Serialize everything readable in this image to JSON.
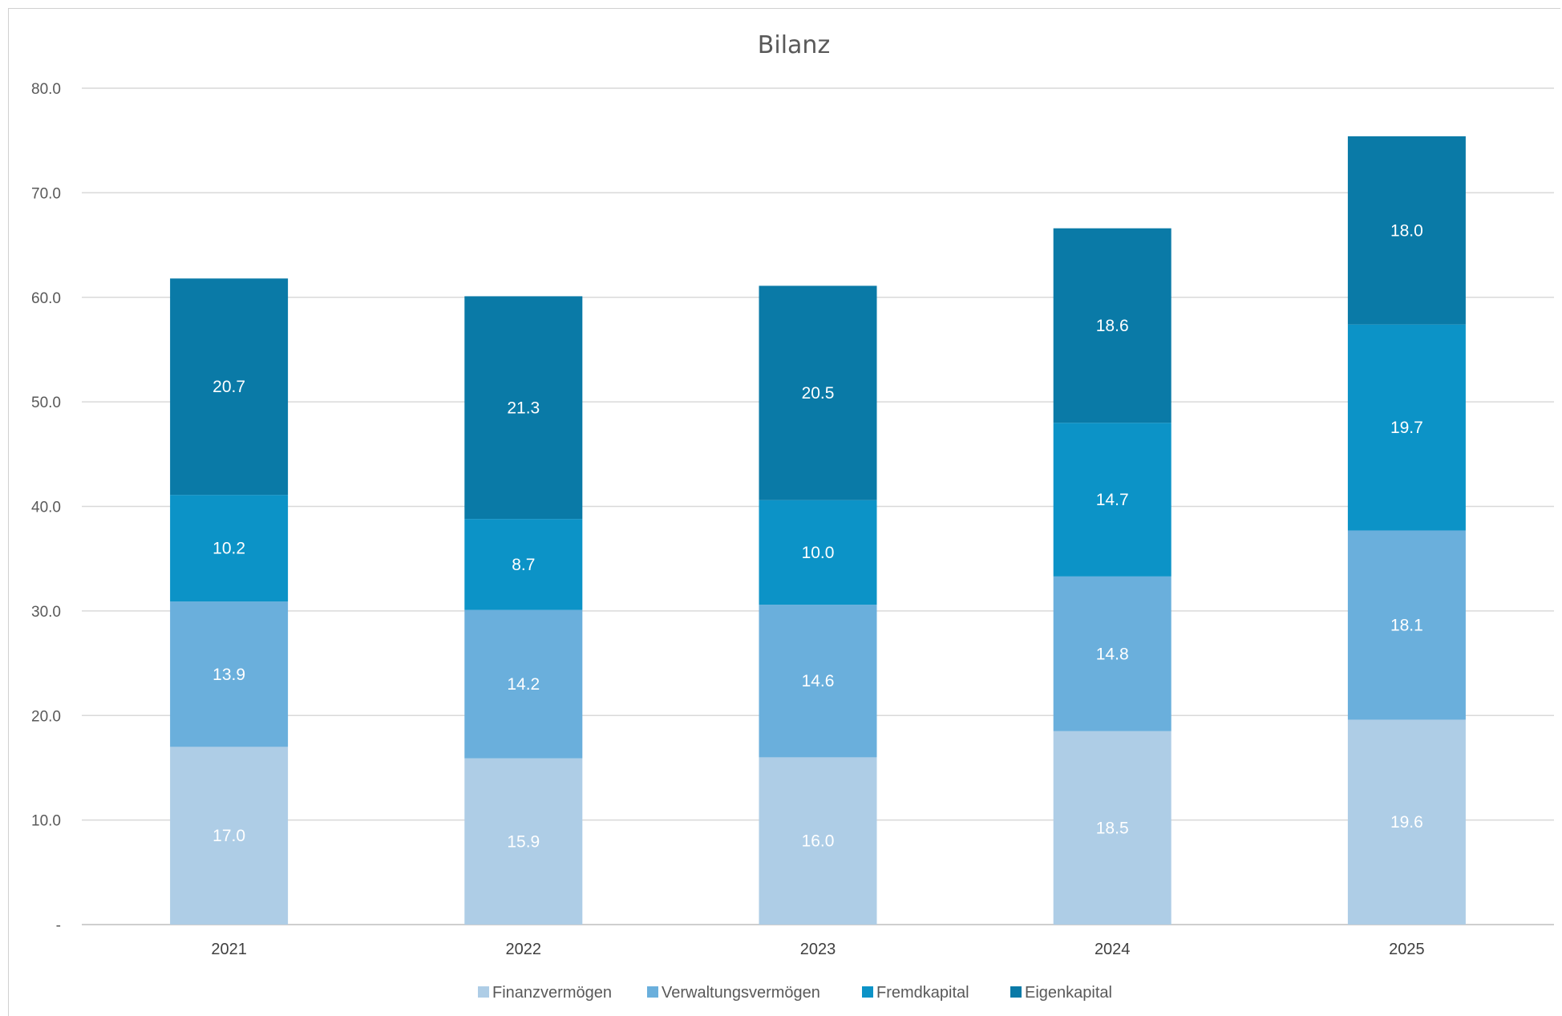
{
  "chart_data": {
    "type": "bar",
    "stacked": true,
    "title": "Bilanz",
    "xlabel": "",
    "ylabel": "",
    "categories": [
      "2021",
      "2022",
      "2023",
      "2024",
      "2025"
    ],
    "ylim": [
      0,
      80
    ],
    "yticks": [
      0,
      10,
      20,
      30,
      40,
      50,
      60,
      70,
      80
    ],
    "ytick_labels": [
      "-",
      "10.0",
      "20.0",
      "30.0",
      "40.0",
      "50.0",
      "60.0",
      "70.0",
      "80.0"
    ],
    "grid": true,
    "legend": "bottom",
    "series": [
      {
        "name": "Finanzvermögen",
        "color": "#aecde6",
        "labels": [
          "17.0",
          "15.9",
          "16.0",
          "18.5",
          "19.6"
        ],
        "values": [
          17.0,
          15.9,
          16.0,
          18.5,
          19.6
        ]
      },
      {
        "name": "Verwaltungsvermögen",
        "color": "#6aafdc",
        "labels": [
          "13.9",
          "14.2",
          "14.6",
          "14.8",
          "18.1"
        ],
        "values": [
          13.9,
          14.2,
          14.6,
          14.8,
          18.1
        ]
      },
      {
        "name": "Fremdkapital",
        "color": "#0c93c7",
        "labels": [
          "10.2",
          "8.7",
          "10.0",
          "14.7",
          "19.7"
        ],
        "values": [
          10.2,
          8.7,
          10.0,
          14.7,
          19.7
        ]
      },
      {
        "name": "Eigenkapital",
        "color": "#0a7aa7",
        "labels": [
          "20.7",
          "21.3",
          "20.5",
          "18.6",
          "18.0"
        ],
        "values": [
          20.7,
          21.3,
          20.5,
          18.6,
          18.0
        ]
      }
    ]
  }
}
